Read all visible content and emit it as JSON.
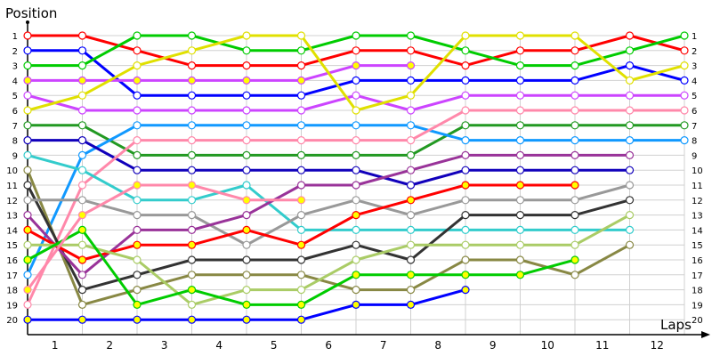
{
  "chart_data": {
    "type": "line",
    "title": "",
    "ylabel": "Position",
    "xlabel": "Laps",
    "x": [
      0,
      1,
      2,
      3,
      4,
      5,
      6,
      7,
      8,
      9,
      10,
      11,
      12
    ],
    "x_tick_labels": [
      "1",
      "2",
      "3",
      "4",
      "5",
      "6",
      "7",
      "8",
      "9",
      "10",
      "11",
      "12"
    ],
    "y_tick_labels": [
      "1",
      "2",
      "3",
      "4",
      "5",
      "6",
      "7",
      "8",
      "9",
      "10",
      "11",
      "12",
      "13",
      "14",
      "15",
      "16",
      "17",
      "18",
      "19",
      "20"
    ],
    "ylim": [
      1,
      20
    ],
    "y_inverted": true,
    "grid": true,
    "legend": "none",
    "series": [
      {
        "name": "red",
        "color": "#ff0000",
        "marker_fill": "#ffffff",
        "values": [
          1,
          1,
          2,
          3,
          3,
          3,
          2,
          2,
          3,
          2,
          2,
          1,
          2
        ]
      },
      {
        "name": "blue",
        "color": "#0000ff",
        "marker_fill": "#ffffff",
        "values": [
          2,
          2,
          5,
          5,
          5,
          5,
          4,
          4,
          4,
          4,
          4,
          3,
          4
        ]
      },
      {
        "name": "green",
        "color": "#00cc00",
        "marker_fill": "#ffffff",
        "values": [
          3,
          3,
          1,
          1,
          2,
          2,
          1,
          1,
          2,
          3,
          3,
          2,
          1
        ]
      },
      {
        "name": "violet-yellow",
        "color": "#cc44ff",
        "marker_fill": "#ffff00",
        "values": [
          4,
          4,
          4,
          4,
          4,
          4,
          3,
          3
        ]
      },
      {
        "name": "violet",
        "color": "#cc44ff",
        "marker_fill": "#ffffff",
        "values": [
          5,
          6,
          6,
          6,
          6,
          6,
          5,
          6,
          5,
          5,
          5,
          5,
          5
        ]
      },
      {
        "name": "yellow",
        "color": "#e0e000",
        "marker_fill": "#ffffff",
        "values": [
          6,
          5,
          3,
          2,
          1,
          1,
          6,
          5,
          1,
          1,
          1,
          4,
          3
        ]
      },
      {
        "name": "dark-green",
        "color": "#229922",
        "marker_fill": "#ffffff",
        "values": [
          7,
          7,
          9,
          9,
          9,
          9,
          9,
          9,
          7,
          7,
          7,
          7,
          7
        ]
      },
      {
        "name": "sky-blue",
        "color": "#1199ff",
        "marker_fill": "#ffffff",
        "values": [
          17,
          9,
          7,
          7,
          7,
          7,
          7,
          7,
          8,
          8,
          8,
          8,
          8
        ]
      },
      {
        "name": "navy",
        "color": "#1100bb",
        "marker_fill": "#ffffff",
        "values": [
          8,
          8,
          10,
          10,
          10,
          10,
          10,
          11,
          10,
          10,
          10,
          10
        ]
      },
      {
        "name": "pink",
        "color": "#ff88aa",
        "marker_fill": "#ffffff",
        "values": [
          19,
          11,
          8,
          8,
          8,
          8,
          8,
          8,
          6,
          6,
          6,
          6,
          6
        ]
      },
      {
        "name": "cyan",
        "color": "#33cccc",
        "marker_fill": "#ffffff",
        "values": [
          9,
          10,
          12,
          12,
          11,
          14,
          14,
          14,
          14,
          14,
          14,
          14
        ]
      },
      {
        "name": "olive",
        "color": "#888844",
        "marker_fill": "#ffffff",
        "values": [
          10,
          19,
          18,
          17,
          17,
          17,
          18,
          18,
          16,
          16,
          17,
          15
        ]
      },
      {
        "name": "black",
        "color": "#333333",
        "marker_fill": "#ffffff",
        "values": [
          11,
          18,
          17,
          16,
          16,
          16,
          15,
          16,
          13,
          13,
          13,
          12
        ]
      },
      {
        "name": "gray",
        "color": "#999999",
        "marker_fill": "#ffffff",
        "values": [
          12,
          12,
          13,
          13,
          15,
          13,
          12,
          13,
          12,
          12,
          12,
          11
        ]
      },
      {
        "name": "purple",
        "color": "#993399",
        "marker_fill": "#ffffff",
        "values": [
          13,
          17,
          14,
          14,
          13,
          11,
          11,
          10,
          9,
          9,
          9,
          9
        ]
      },
      {
        "name": "red-yellow",
        "color": "#ff0000",
        "marker_fill": "#ffff00",
        "values": [
          14,
          16,
          15,
          15,
          14,
          15,
          13,
          12,
          11,
          11,
          11
        ]
      },
      {
        "name": "light-green",
        "color": "#aacc66",
        "marker_fill": "#ffffff",
        "values": [
          15,
          15,
          16,
          19,
          18,
          18,
          16,
          15,
          15,
          15,
          15,
          13
        ]
      },
      {
        "name": "green-yellow",
        "color": "#00cc00",
        "marker_fill": "#ffff00",
        "values": [
          16,
          14,
          19,
          18,
          19,
          19,
          17,
          17,
          17,
          17,
          16
        ]
      },
      {
        "name": "pink-yellow",
        "color": "#ff88aa",
        "marker_fill": "#ffff00",
        "values": [
          18,
          13,
          11,
          11,
          12,
          12
        ]
      },
      {
        "name": "blue-yellow",
        "color": "#0000ff",
        "marker_fill": "#ffff00",
        "values": [
          20,
          20,
          20,
          20,
          20,
          20,
          19,
          19,
          18
        ]
      }
    ]
  }
}
